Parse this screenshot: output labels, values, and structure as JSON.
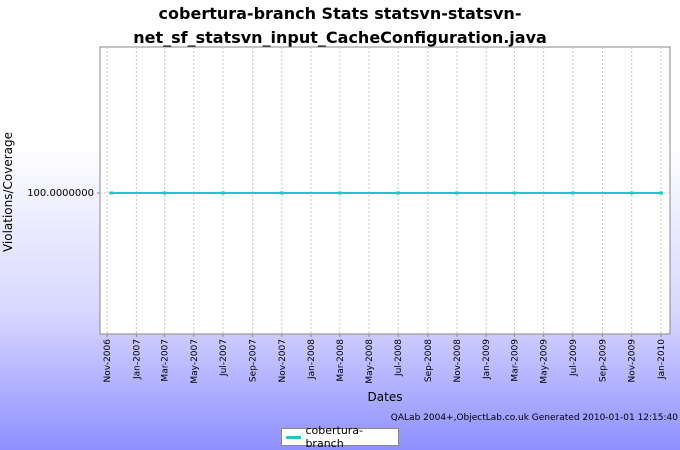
{
  "chart_data": {
    "type": "line",
    "title_line1": "cobertura-branch  Stats statsvn-statsvn-",
    "title_line2": "net_sf_statsvn_input_CacheConfiguration.java",
    "xlabel": "Dates",
    "ylabel": "Violations/Coverage",
    "x_ticks": [
      "Nov-2006",
      "Jan-2007",
      "Mar-2007",
      "May-2007",
      "Jul-2007",
      "Sep-2007",
      "Nov-2007",
      "Jan-2008",
      "Mar-2008",
      "May-2008",
      "Jul-2008",
      "Sep-2008",
      "Nov-2008",
      "Jan-2009",
      "Mar-2009",
      "May-2009",
      "Jul-2009",
      "Sep-2009",
      "Nov-2009",
      "Jan-2010"
    ],
    "y_ticks": [
      "100.0000000"
    ],
    "xlim": [
      "2006-10-17",
      "2010-01-20"
    ],
    "grid": true,
    "legend_position": "bottom",
    "series": [
      {
        "name": "cobertura-branch",
        "color": "#1fc7c7",
        "x": [
          "2006-11-10",
          "2007-03-01",
          "2007-07-01",
          "2007-11-01",
          "2008-03-01",
          "2008-07-01",
          "2008-11-01",
          "2009-03-01",
          "2009-07-01",
          "2009-11-01",
          "2010-01-01"
        ],
        "values": [
          100,
          100,
          100,
          100,
          100,
          100,
          100,
          100,
          100,
          100,
          100
        ]
      }
    ]
  },
  "footer": "QALab 2004+,ObjectLab.co.uk  Generated 2010-01-01 12:15:40"
}
